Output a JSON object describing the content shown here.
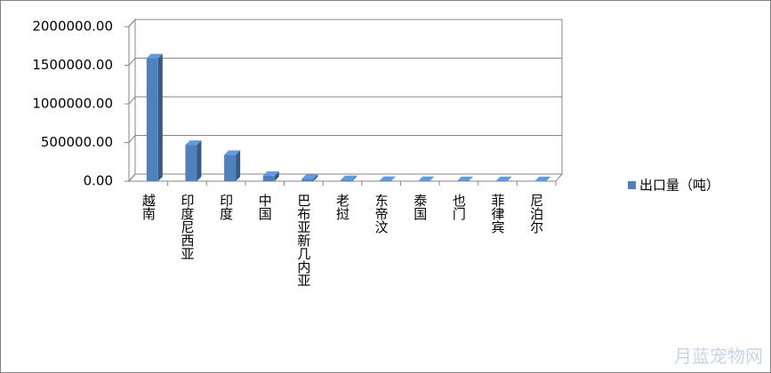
{
  "chart_data": {
    "type": "bar3d",
    "categories": [
      "越南",
      "印度尼西亚",
      "印度",
      "中国",
      "巴布亚新几内亚",
      "老挝",
      "东帝汶",
      "泰国",
      "也门",
      "菲律宾",
      "尼泊尔"
    ],
    "series": [
      {
        "name": "出口量（吨）",
        "color": "#4f81bd",
        "values": [
          1590000,
          470000,
          340000,
          70000,
          30000,
          15000,
          5000,
          3000,
          2000,
          1000,
          500
        ]
      }
    ],
    "ylim": [
      0,
      2000000
    ],
    "yticks": [
      {
        "value": 0,
        "label": "0.00"
      },
      {
        "value": 500000,
        "label": "500000.00"
      },
      {
        "value": 1000000,
        "label": "1000000.00"
      },
      {
        "value": 1500000,
        "label": "1500000.00"
      },
      {
        "value": 2000000,
        "label": "2000000.00"
      }
    ],
    "grid": true,
    "legend": "right"
  },
  "watermark": "月蓝宠物网"
}
